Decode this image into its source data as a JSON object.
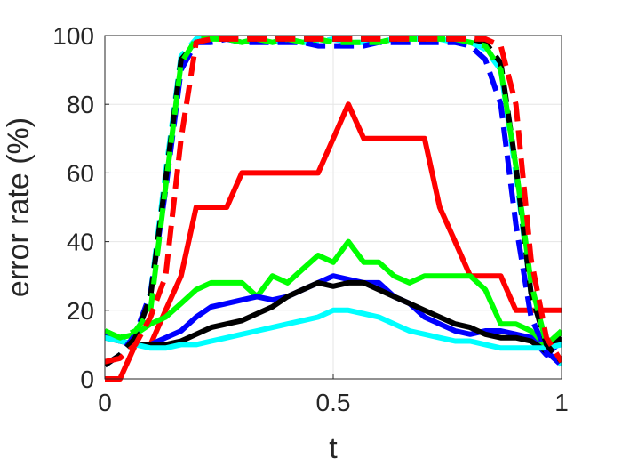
{
  "chart_data": {
    "type": "line",
    "xlabel": "t",
    "ylabel": "error rate (%)",
    "xlim": [
      0,
      1
    ],
    "ylim": [
      0,
      100
    ],
    "xticks": [
      0,
      0.5,
      1
    ],
    "xtick_labels": [
      "0",
      "0.5",
      "1"
    ],
    "yticks": [
      0,
      20,
      40,
      60,
      80,
      100
    ],
    "ytick_labels": [
      "0",
      "20",
      "40",
      "60",
      "80",
      "100"
    ],
    "grid": true,
    "legend": "none",
    "x": [
      0,
      0.033,
      0.067,
      0.1,
      0.133,
      0.167,
      0.2,
      0.233,
      0.267,
      0.3,
      0.333,
      0.367,
      0.4,
      0.433,
      0.467,
      0.5,
      0.533,
      0.567,
      0.6,
      0.633,
      0.667,
      0.7,
      0.733,
      0.767,
      0.8,
      0.833,
      0.867,
      0.9,
      0.933,
      0.967,
      1
    ],
    "series": [
      {
        "color": "#ff0000",
        "dash": "solid",
        "values": [
          0,
          0,
          10,
          10,
          20,
          30,
          50,
          50,
          50,
          60,
          60,
          60,
          60,
          60,
          60,
          70,
          80,
          70,
          70,
          70,
          70,
          70,
          50,
          40,
          30,
          30,
          30,
          20,
          20,
          20,
          20
        ]
      },
      {
        "color": "#00ff00",
        "dash": "solid",
        "values": [
          14,
          12,
          13,
          16,
          18,
          22,
          26,
          28,
          28,
          28,
          24,
          30,
          28,
          32,
          36,
          34,
          40,
          34,
          34,
          30,
          28,
          30,
          30,
          30,
          30,
          26,
          16,
          16,
          14,
          8,
          14
        ]
      },
      {
        "color": "#0000ff",
        "dash": "solid",
        "values": [
          13,
          11,
          10,
          10,
          12,
          14,
          18,
          21,
          22,
          23,
          24,
          23,
          24,
          26,
          28,
          30,
          29,
          28,
          28,
          24,
          22,
          18,
          16,
          14,
          13,
          14,
          14,
          13,
          12,
          7,
          11
        ]
      },
      {
        "color": "#000000",
        "dash": "solid",
        "values": [
          12,
          11,
          10,
          10,
          10,
          11,
          13,
          15,
          16,
          17,
          19,
          21,
          24,
          26,
          28,
          27,
          28,
          28,
          26,
          24,
          22,
          20,
          18,
          16,
          15,
          13,
          12,
          12,
          11,
          8,
          12
        ]
      },
      {
        "color": "#00ffff",
        "dash": "solid",
        "values": [
          12,
          11,
          10,
          9,
          9,
          10,
          10,
          11,
          12,
          13,
          14,
          15,
          16,
          17,
          18,
          20,
          20,
          19,
          18,
          16,
          14,
          13,
          12,
          11,
          11,
          10,
          9,
          9,
          9,
          9,
          10
        ]
      },
      {
        "color": "#00ffff",
        "dash": "dashed",
        "values": [
          4,
          7,
          12,
          25,
          60,
          94,
          99,
          99,
          99,
          98,
          99,
          98,
          99,
          98,
          98,
          99,
          98,
          98,
          98,
          99,
          99,
          99,
          99,
          98,
          98,
          96,
          90,
          60,
          25,
          10,
          4
        ]
      },
      {
        "color": "#0000ff",
        "dash": "dashed",
        "values": [
          4,
          7,
          13,
          25,
          55,
          90,
          98,
          98,
          99,
          98,
          98,
          98,
          98,
          98,
          97,
          97,
          97,
          97,
          98,
          98,
          98,
          98,
          98,
          98,
          97,
          93,
          80,
          45,
          18,
          8,
          4
        ]
      },
      {
        "color": "#000000",
        "dash": "dashed",
        "values": [
          4,
          7,
          12,
          24,
          58,
          93,
          98,
          99,
          99,
          99,
          99,
          99,
          99,
          99,
          99,
          99,
          99,
          99,
          99,
          99,
          99,
          99,
          99,
          99,
          99,
          98,
          92,
          62,
          25,
          10,
          5
        ]
      },
      {
        "color": "#00ff00",
        "dash": "dashed",
        "values": [
          14,
          12,
          14,
          20,
          56,
          92,
          99,
          99,
          99,
          98,
          99,
          98,
          99,
          98,
          99,
          98,
          98,
          98,
          98,
          99,
          99,
          99,
          99,
          99,
          98,
          97,
          90,
          62,
          28,
          10,
          14
        ]
      },
      {
        "color": "#ff0000",
        "dash": "dashed",
        "values": [
          5,
          6,
          10,
          18,
          30,
          70,
          98,
          99,
          99,
          99,
          99,
          99,
          99,
          99,
          99,
          99,
          99,
          99,
          99,
          99,
          99,
          99,
          99,
          99,
          99,
          99,
          97,
          80,
          35,
          12,
          5
        ]
      }
    ]
  }
}
